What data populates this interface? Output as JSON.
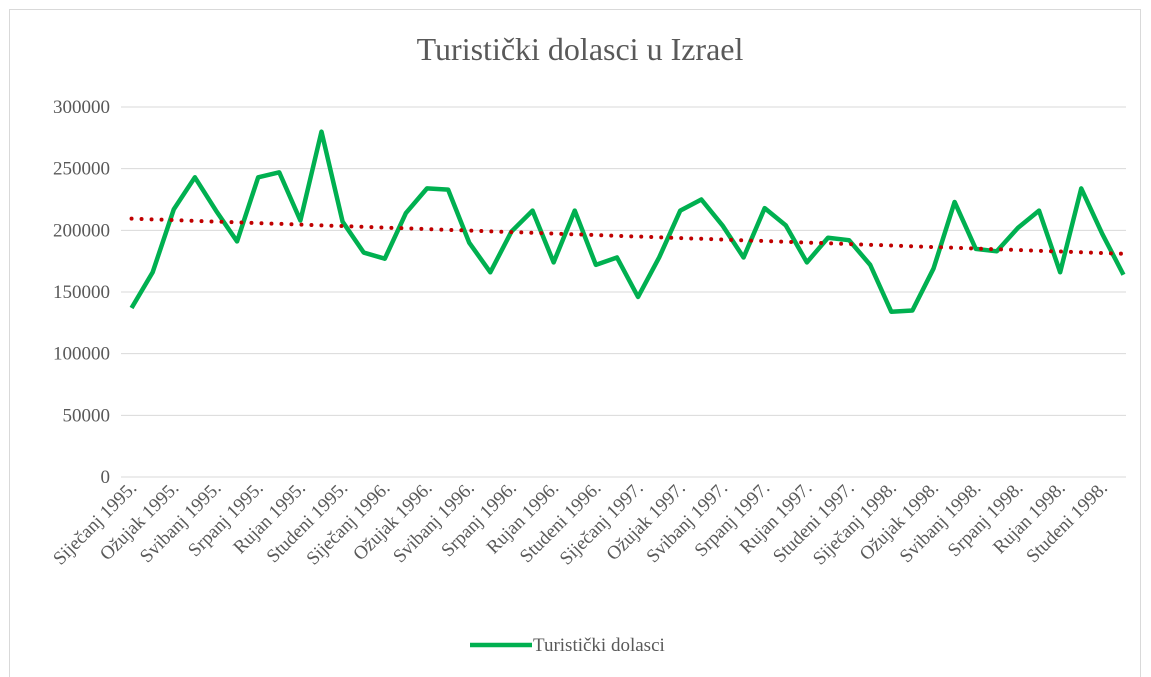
{
  "chart_data": {
    "type": "line",
    "title": "Turistički dolasci u Izrael",
    "categories": [
      "Siječanj 1995.",
      null,
      "Ožujak 1995.",
      null,
      "Svibanj 1995.",
      null,
      "Srpanj 1995.",
      null,
      "Rujan 1995.",
      null,
      "Studeni 1995.",
      null,
      "Siječanj 1996.",
      null,
      "Ožujak 1996.",
      null,
      "Svibanj 1996.",
      null,
      "Srpanj 1996.",
      null,
      "Rujan 1996.",
      null,
      "Studeni 1996.",
      null,
      "Siječanj 1997.",
      null,
      "Ožujak 1997.",
      null,
      "Svibanj 1997.",
      null,
      "Srpanj 1997.",
      null,
      "Rujan 1997.",
      null,
      "Studeni 1997.",
      null,
      "Siječanj 1998.",
      null,
      "Ožujak 1998.",
      null,
      "Svibanj 1998.",
      null,
      "Srpanj 1998.",
      null,
      "Rujan 1998.",
      null,
      "Studeni 1998.",
      null
    ],
    "series": [
      {
        "name": "Turistički dolasci",
        "color": "#00b050",
        "values": [
          137000,
          166000,
          217000,
          243000,
          216000,
          191000,
          243000,
          247000,
          208000,
          280000,
          207000,
          182000,
          177000,
          214000,
          234000,
          233000,
          190000,
          166000,
          199000,
          216000,
          174000,
          216000,
          172000,
          178000,
          146000,
          178000,
          216000,
          225000,
          204000,
          178000,
          218000,
          204000,
          174000,
          194000,
          192000,
          172000,
          134000,
          135000,
          169000,
          223000,
          185000,
          183000,
          202000,
          216000,
          166000,
          234000,
          197000,
          164000
        ]
      }
    ],
    "trendline": {
      "color": "#c00000",
      "values": [
        209500,
        181000
      ]
    },
    "ylim": [
      0,
      300000
    ],
    "yticks": [
      0,
      50000,
      100000,
      150000,
      200000,
      250000,
      300000
    ],
    "grid": true,
    "legend": "bottom"
  }
}
